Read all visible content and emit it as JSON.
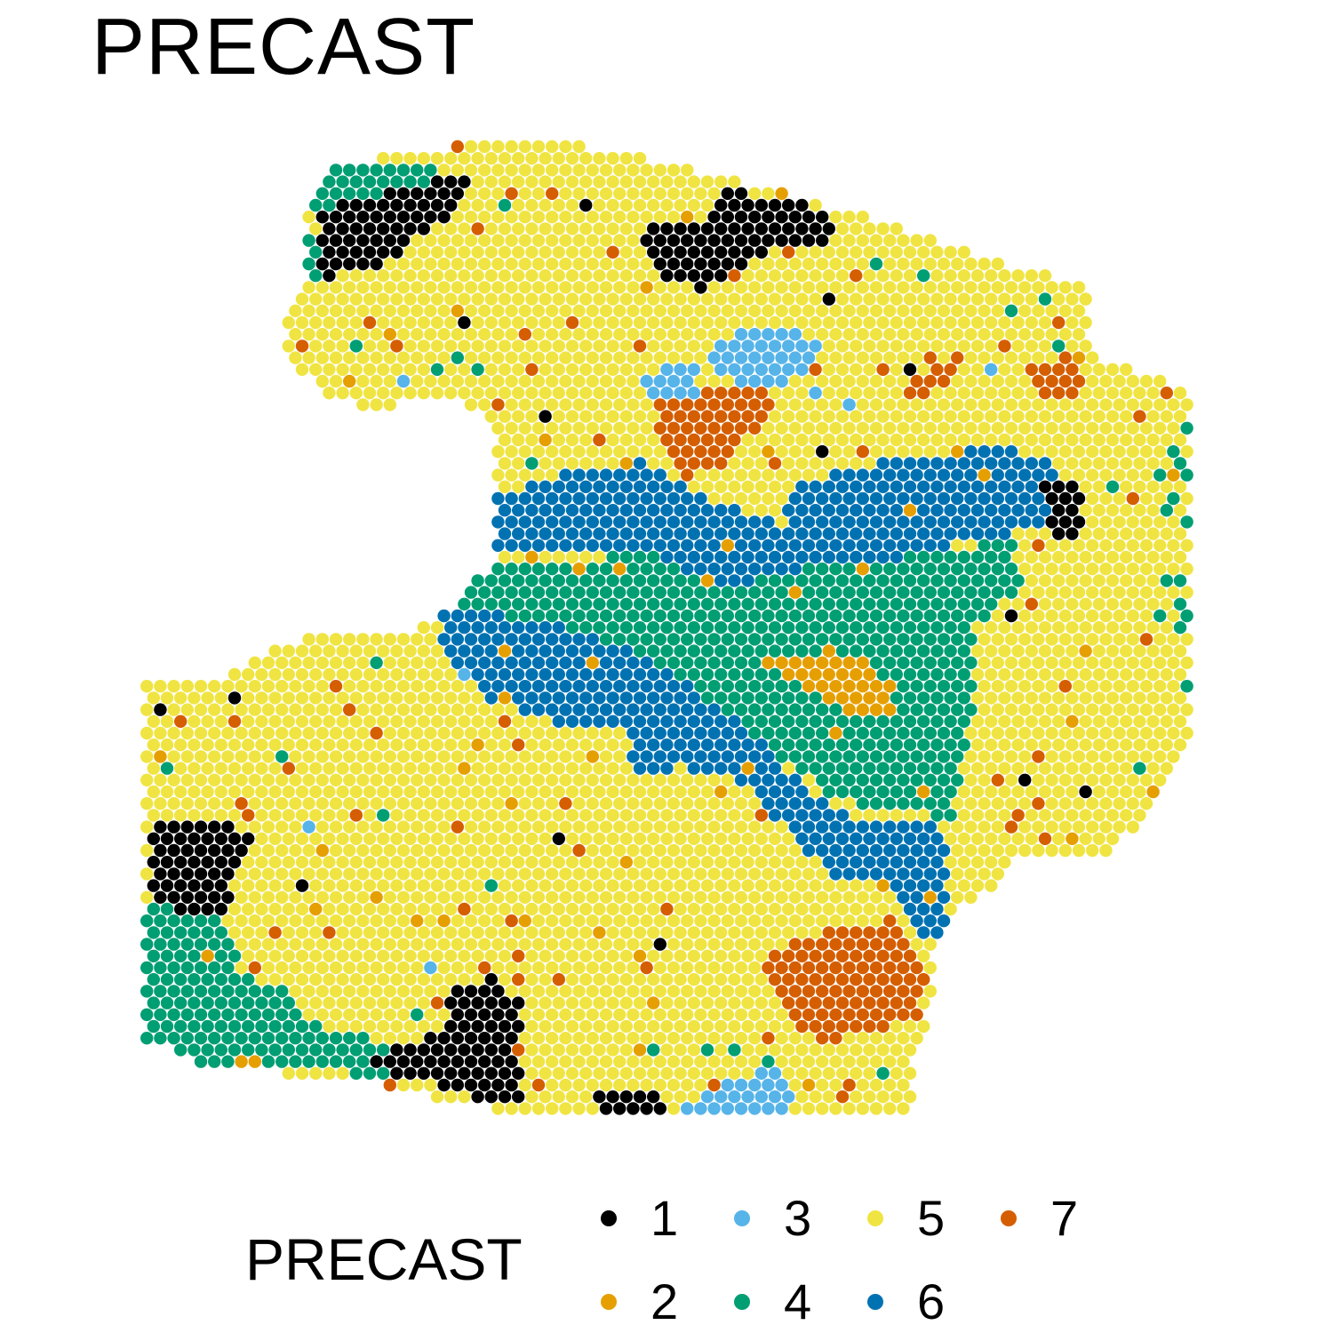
{
  "title": "PRECAST",
  "legend": {
    "title": "PRECAST",
    "items": [
      {
        "label": "1",
        "color": "#000000"
      },
      {
        "label": "2",
        "color": "#E69F00"
      },
      {
        "label": "3",
        "color": "#56B4E9"
      },
      {
        "label": "4",
        "color": "#009E73"
      },
      {
        "label": "5",
        "color": "#F0E442"
      },
      {
        "label": "6",
        "color": "#0072B2"
      },
      {
        "label": "7",
        "color": "#D55E00"
      }
    ]
  },
  "chart_data": {
    "type": "scatter",
    "title": "PRECAST",
    "xlabel": "",
    "ylabel": "",
    "grid": false,
    "axes": false,
    "legend_position": "bottom",
    "category_field": "PRECAST",
    "categories": [
      "1",
      "2",
      "3",
      "4",
      "5",
      "6",
      "7"
    ],
    "description_of_regions": {
      "5": "background tissue (majority)",
      "6": "two diagonal bands across the middle",
      "4": "band between the blue bands, lower-left corner, upper-left edge",
      "1": "clusters at top-left, top-center, lower-left, bottom-center",
      "7": "clusters at center-top and lower-right",
      "3": "cluster at upper-center and bottom-center",
      "2": "scattered spots"
    }
  }
}
